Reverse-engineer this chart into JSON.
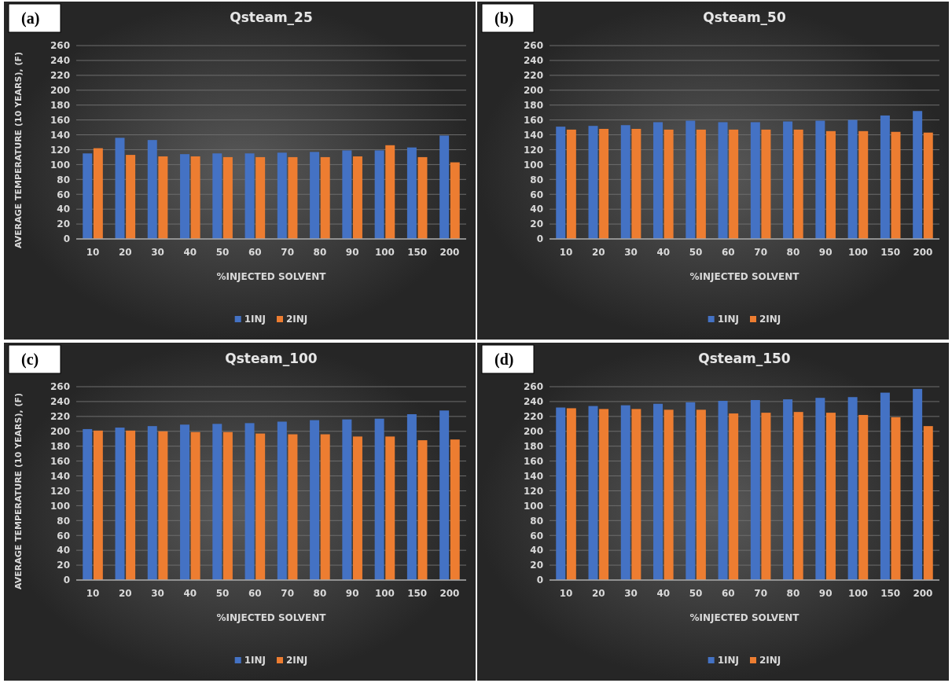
{
  "chart_data": [
    {
      "type": "bar",
      "title": "Qsteam_25",
      "xlabel": "%INJECTED SOLVENT",
      "ylabel": "AVERAGE TEMPERATURE (10 YEARS), (F)",
      "annotations": [
        "(a)"
      ],
      "categories": [
        "10",
        "20",
        "30",
        "40",
        "50",
        "60",
        "70",
        "80",
        "90",
        "100",
        "150",
        "200"
      ],
      "series": [
        {
          "name": "1INJ",
          "color": "#4472c4",
          "values": [
            115,
            136,
            133,
            114,
            115,
            115,
            116,
            117,
            119,
            119,
            123,
            139
          ]
        },
        {
          "name": "2INJ",
          "color": "#ed7d31",
          "values": [
            122,
            113,
            111,
            111,
            110,
            110,
            110,
            110,
            111,
            126,
            110,
            103
          ]
        }
      ],
      "ylim": [
        0,
        260
      ],
      "yticks": [
        0,
        20,
        40,
        60,
        80,
        100,
        120,
        140,
        160,
        180,
        200,
        220,
        240,
        260
      ],
      "grid": "y",
      "legend": "bottom"
    },
    {
      "type": "bar",
      "title": "Qsteam_50",
      "xlabel": "%INJECTED SOLVENT",
      "annotations": [
        "(b)"
      ],
      "categories": [
        "10",
        "20",
        "30",
        "40",
        "50",
        "60",
        "70",
        "80",
        "90",
        "100",
        "150",
        "200"
      ],
      "series": [
        {
          "name": "1INJ",
          "color": "#4472c4",
          "values": [
            151,
            152,
            153,
            157,
            159,
            157,
            157,
            158,
            159,
            160,
            166,
            172
          ]
        },
        {
          "name": "2INJ",
          "color": "#ed7d31",
          "values": [
            147,
            148,
            148,
            147,
            147,
            147,
            147,
            147,
            145,
            145,
            144,
            143
          ]
        }
      ],
      "ylim": [
        0,
        260
      ],
      "yticks": [
        0,
        20,
        40,
        60,
        80,
        100,
        120,
        140,
        160,
        180,
        200,
        220,
        240,
        260
      ],
      "grid": "y",
      "legend": "bottom"
    },
    {
      "type": "bar",
      "title": "Qsteam_100",
      "xlabel": "%INJECTED SOLVENT",
      "ylabel": "AVERAGE TEMPERATURE (10 YEARS), (F)",
      "annotations": [
        "(c)"
      ],
      "categories": [
        "10",
        "20",
        "30",
        "40",
        "50",
        "60",
        "70",
        "80",
        "90",
        "100",
        "150",
        "200"
      ],
      "series": [
        {
          "name": "1INJ",
          "color": "#4472c4",
          "values": [
            203,
            205,
            207,
            209,
            210,
            211,
            213,
            215,
            216,
            217,
            223,
            228
          ]
        },
        {
          "name": "2INJ",
          "color": "#ed7d31",
          "values": [
            201,
            201,
            200,
            199,
            199,
            197,
            196,
            196,
            193,
            193,
            188,
            189
          ]
        }
      ],
      "ylim": [
        0,
        260
      ],
      "yticks": [
        0,
        20,
        40,
        60,
        80,
        100,
        120,
        140,
        160,
        180,
        200,
        220,
        240,
        260
      ],
      "grid": "y",
      "legend": "bottom"
    },
    {
      "type": "bar",
      "title": "Qsteam_150",
      "xlabel": "%INJECTED SOLVENT",
      "annotations": [
        "(d)"
      ],
      "categories": [
        "10",
        "20",
        "30",
        "40",
        "50",
        "60",
        "70",
        "80",
        "90",
        "100",
        "150",
        "200"
      ],
      "series": [
        {
          "name": "1INJ",
          "color": "#4472c4",
          "values": [
            232,
            234,
            235,
            237,
            239,
            241,
            242,
            243,
            245,
            246,
            252,
            257
          ]
        },
        {
          "name": "2INJ",
          "color": "#ed7d31",
          "values": [
            231,
            230,
            230,
            229,
            229,
            224,
            225,
            226,
            225,
            222,
            219,
            207
          ]
        }
      ],
      "ylim": [
        0,
        260
      ],
      "yticks": [
        0,
        20,
        40,
        60,
        80,
        100,
        120,
        140,
        160,
        180,
        200,
        220,
        240,
        260
      ],
      "grid": "y",
      "legend": "bottom"
    }
  ]
}
